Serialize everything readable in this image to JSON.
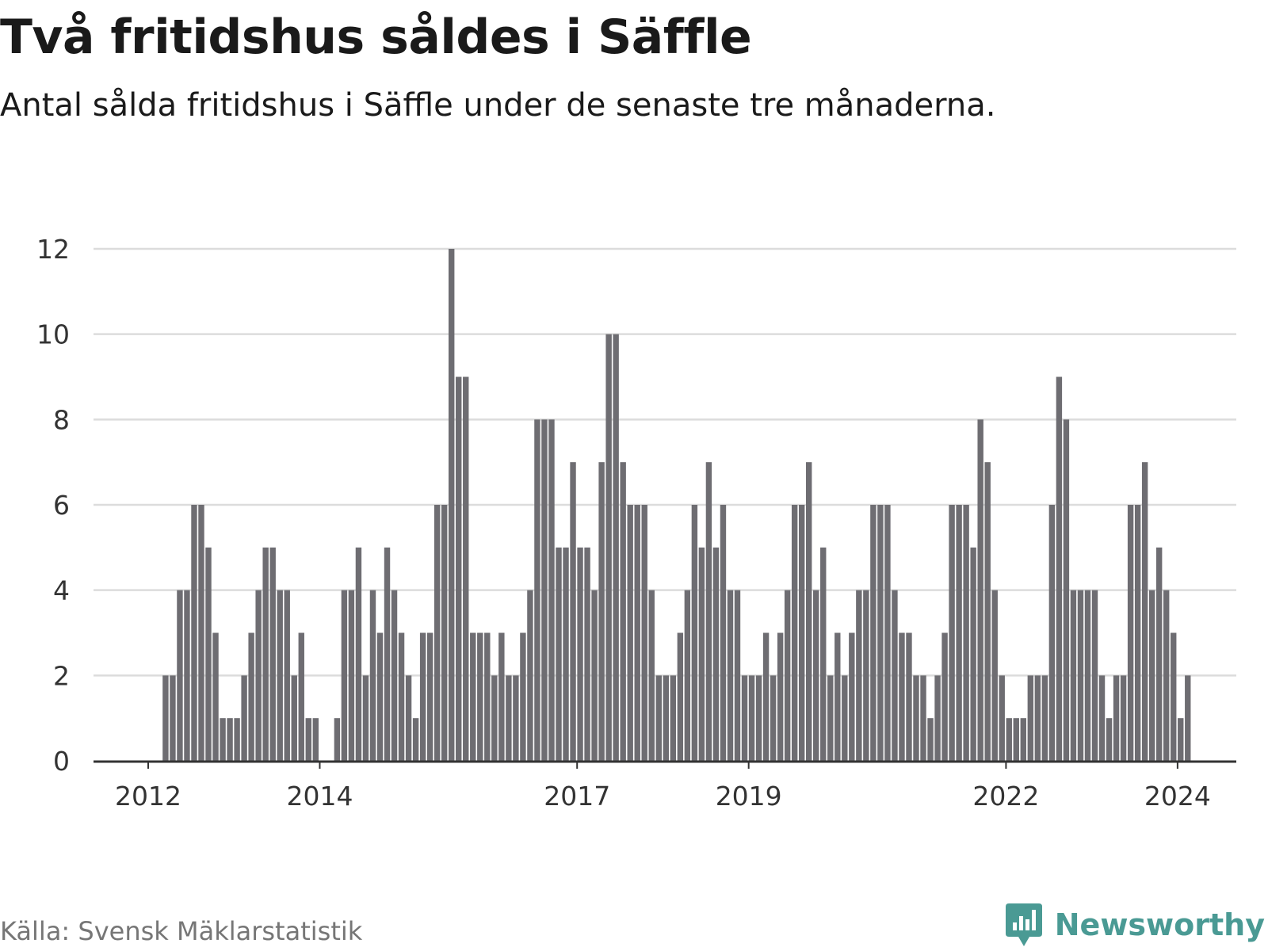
{
  "header": {
    "title": "Två fritidshus såldes i Säffle",
    "subtitle": "Antal sålda fritidshus i Säffle under de senaste tre månaderna."
  },
  "footer": {
    "source": "Källa: Svensk Mäklarstatistik",
    "brand": "Newsworthy"
  },
  "colors": {
    "bar": "#6e6d72",
    "highlight": "#1a9e96",
    "grid": "#dcdcdc",
    "axis": "#333333",
    "brand": "#4a9a94"
  },
  "chart_data": {
    "type": "bar",
    "title": "Två fritidshus såldes i Säffle",
    "subtitle": "Antal sålda fritidshus i Säffle under de senaste tre månaderna.",
    "xlabel": "",
    "ylabel": "",
    "ylim": [
      0,
      12
    ],
    "yticks": [
      0,
      2,
      4,
      6,
      8,
      10,
      12
    ],
    "xticks": [
      "2012",
      "2014",
      "2017",
      "2019",
      "2022",
      "2024"
    ],
    "grid": true,
    "highlight_label": "2",
    "values": [
      0,
      0,
      0,
      0,
      0,
      0,
      0,
      0,
      0,
      0,
      2,
      2,
      4,
      4,
      6,
      6,
      5,
      3,
      1,
      1,
      1,
      2,
      3,
      4,
      5,
      5,
      4,
      4,
      2,
      3,
      1,
      1,
      0,
      0,
      1,
      4,
      4,
      5,
      2,
      4,
      3,
      5,
      4,
      3,
      2,
      1,
      3,
      3,
      6,
      6,
      12,
      9,
      9,
      3,
      3,
      3,
      2,
      3,
      2,
      2,
      3,
      4,
      8,
      8,
      8,
      5,
      5,
      7,
      5,
      5,
      4,
      7,
      10,
      10,
      7,
      6,
      6,
      6,
      4,
      2,
      2,
      2,
      3,
      4,
      6,
      5,
      7,
      5,
      6,
      4,
      4,
      2,
      2,
      2,
      3,
      2,
      3,
      4,
      6,
      6,
      7,
      4,
      5,
      2,
      3,
      2,
      3,
      4,
      4,
      6,
      6,
      6,
      4,
      3,
      3,
      2,
      2,
      1,
      2,
      3,
      6,
      6,
      6,
      5,
      8,
      7,
      4,
      2,
      1,
      1,
      1,
      2,
      2,
      2,
      6,
      9,
      8,
      4,
      4,
      4,
      4,
      2,
      1,
      2,
      2,
      6,
      6,
      7,
      4,
      5,
      4,
      3,
      1,
      2
    ],
    "highlight_index": 154
  }
}
